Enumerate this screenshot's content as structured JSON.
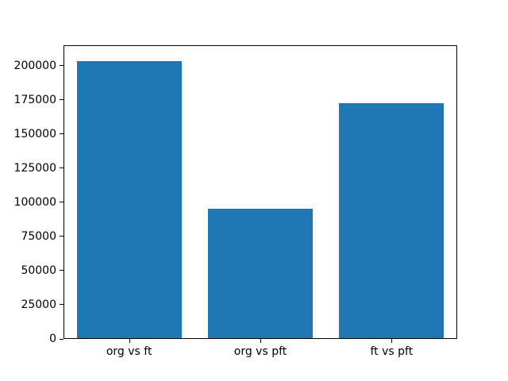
{
  "chart_data": {
    "type": "bar",
    "categories": [
      "org vs ft",
      "org vs pft",
      "ft vs pft"
    ],
    "values": [
      204000,
      95000,
      173000
    ],
    "title": "",
    "xlabel": "",
    "ylabel": "",
    "ylim": [
      0,
      215000
    ],
    "yticks": [
      0,
      25000,
      50000,
      75000,
      100000,
      125000,
      150000,
      175000,
      200000
    ],
    "bar_width_fraction": 0.8,
    "grid": false,
    "legend": null,
    "bar_color": "#1f77b4"
  },
  "colors": {
    "bar": "#1f77b4",
    "background": "#ffffff",
    "axis": "#000000",
    "tick_text": "#000000"
  }
}
